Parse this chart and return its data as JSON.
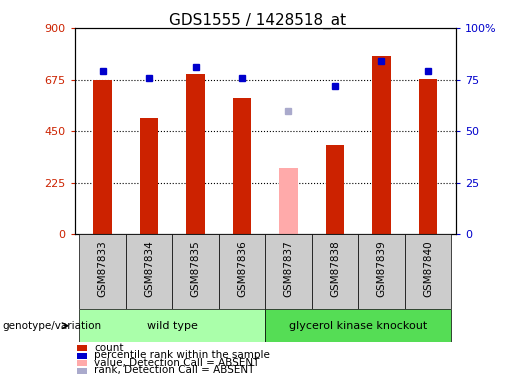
{
  "title": "GDS1555 / 1428518_at",
  "samples": [
    "GSM87833",
    "GSM87834",
    "GSM87835",
    "GSM87836",
    "GSM87837",
    "GSM87838",
    "GSM87839",
    "GSM87840"
  ],
  "counts": [
    675,
    510,
    700,
    595,
    290,
    390,
    780,
    680
  ],
  "percentile_ranks": [
    79,
    76,
    81,
    76,
    60,
    72,
    84,
    79
  ],
  "absent_flags": [
    false,
    false,
    false,
    false,
    true,
    false,
    false,
    false
  ],
  "bar_color_present": "#cc2200",
  "bar_color_absent": "#ffaaaa",
  "dot_color_present": "#0000cc",
  "dot_color_absent": "#aaaacc",
  "ylim_left": [
    0,
    900
  ],
  "ylim_right": [
    0,
    100
  ],
  "yticks_left": [
    0,
    225,
    450,
    675,
    900
  ],
  "yticks_right": [
    0,
    25,
    50,
    75,
    100
  ],
  "ytick_labels_right": [
    "0",
    "25",
    "50",
    "75",
    "100%"
  ],
  "genotype_groups": [
    {
      "label": "wild type",
      "start": 0,
      "end": 4,
      "color": "#aaffaa"
    },
    {
      "label": "glycerol kinase knockout",
      "start": 4,
      "end": 8,
      "color": "#55dd55"
    }
  ],
  "legend_items": [
    {
      "label": "count",
      "color": "#cc2200"
    },
    {
      "label": "percentile rank within the sample",
      "color": "#0000cc"
    },
    {
      "label": "value, Detection Call = ABSENT",
      "color": "#ffaaaa"
    },
    {
      "label": "rank, Detection Call = ABSENT",
      "color": "#aaaacc"
    }
  ],
  "genotype_label": "genotype/variation",
  "title_fontsize": 11,
  "tick_fontsize": 8,
  "label_fontsize": 7.5,
  "bar_width": 0.4,
  "sample_label_color": "#cccccc",
  "grid_color": "black"
}
